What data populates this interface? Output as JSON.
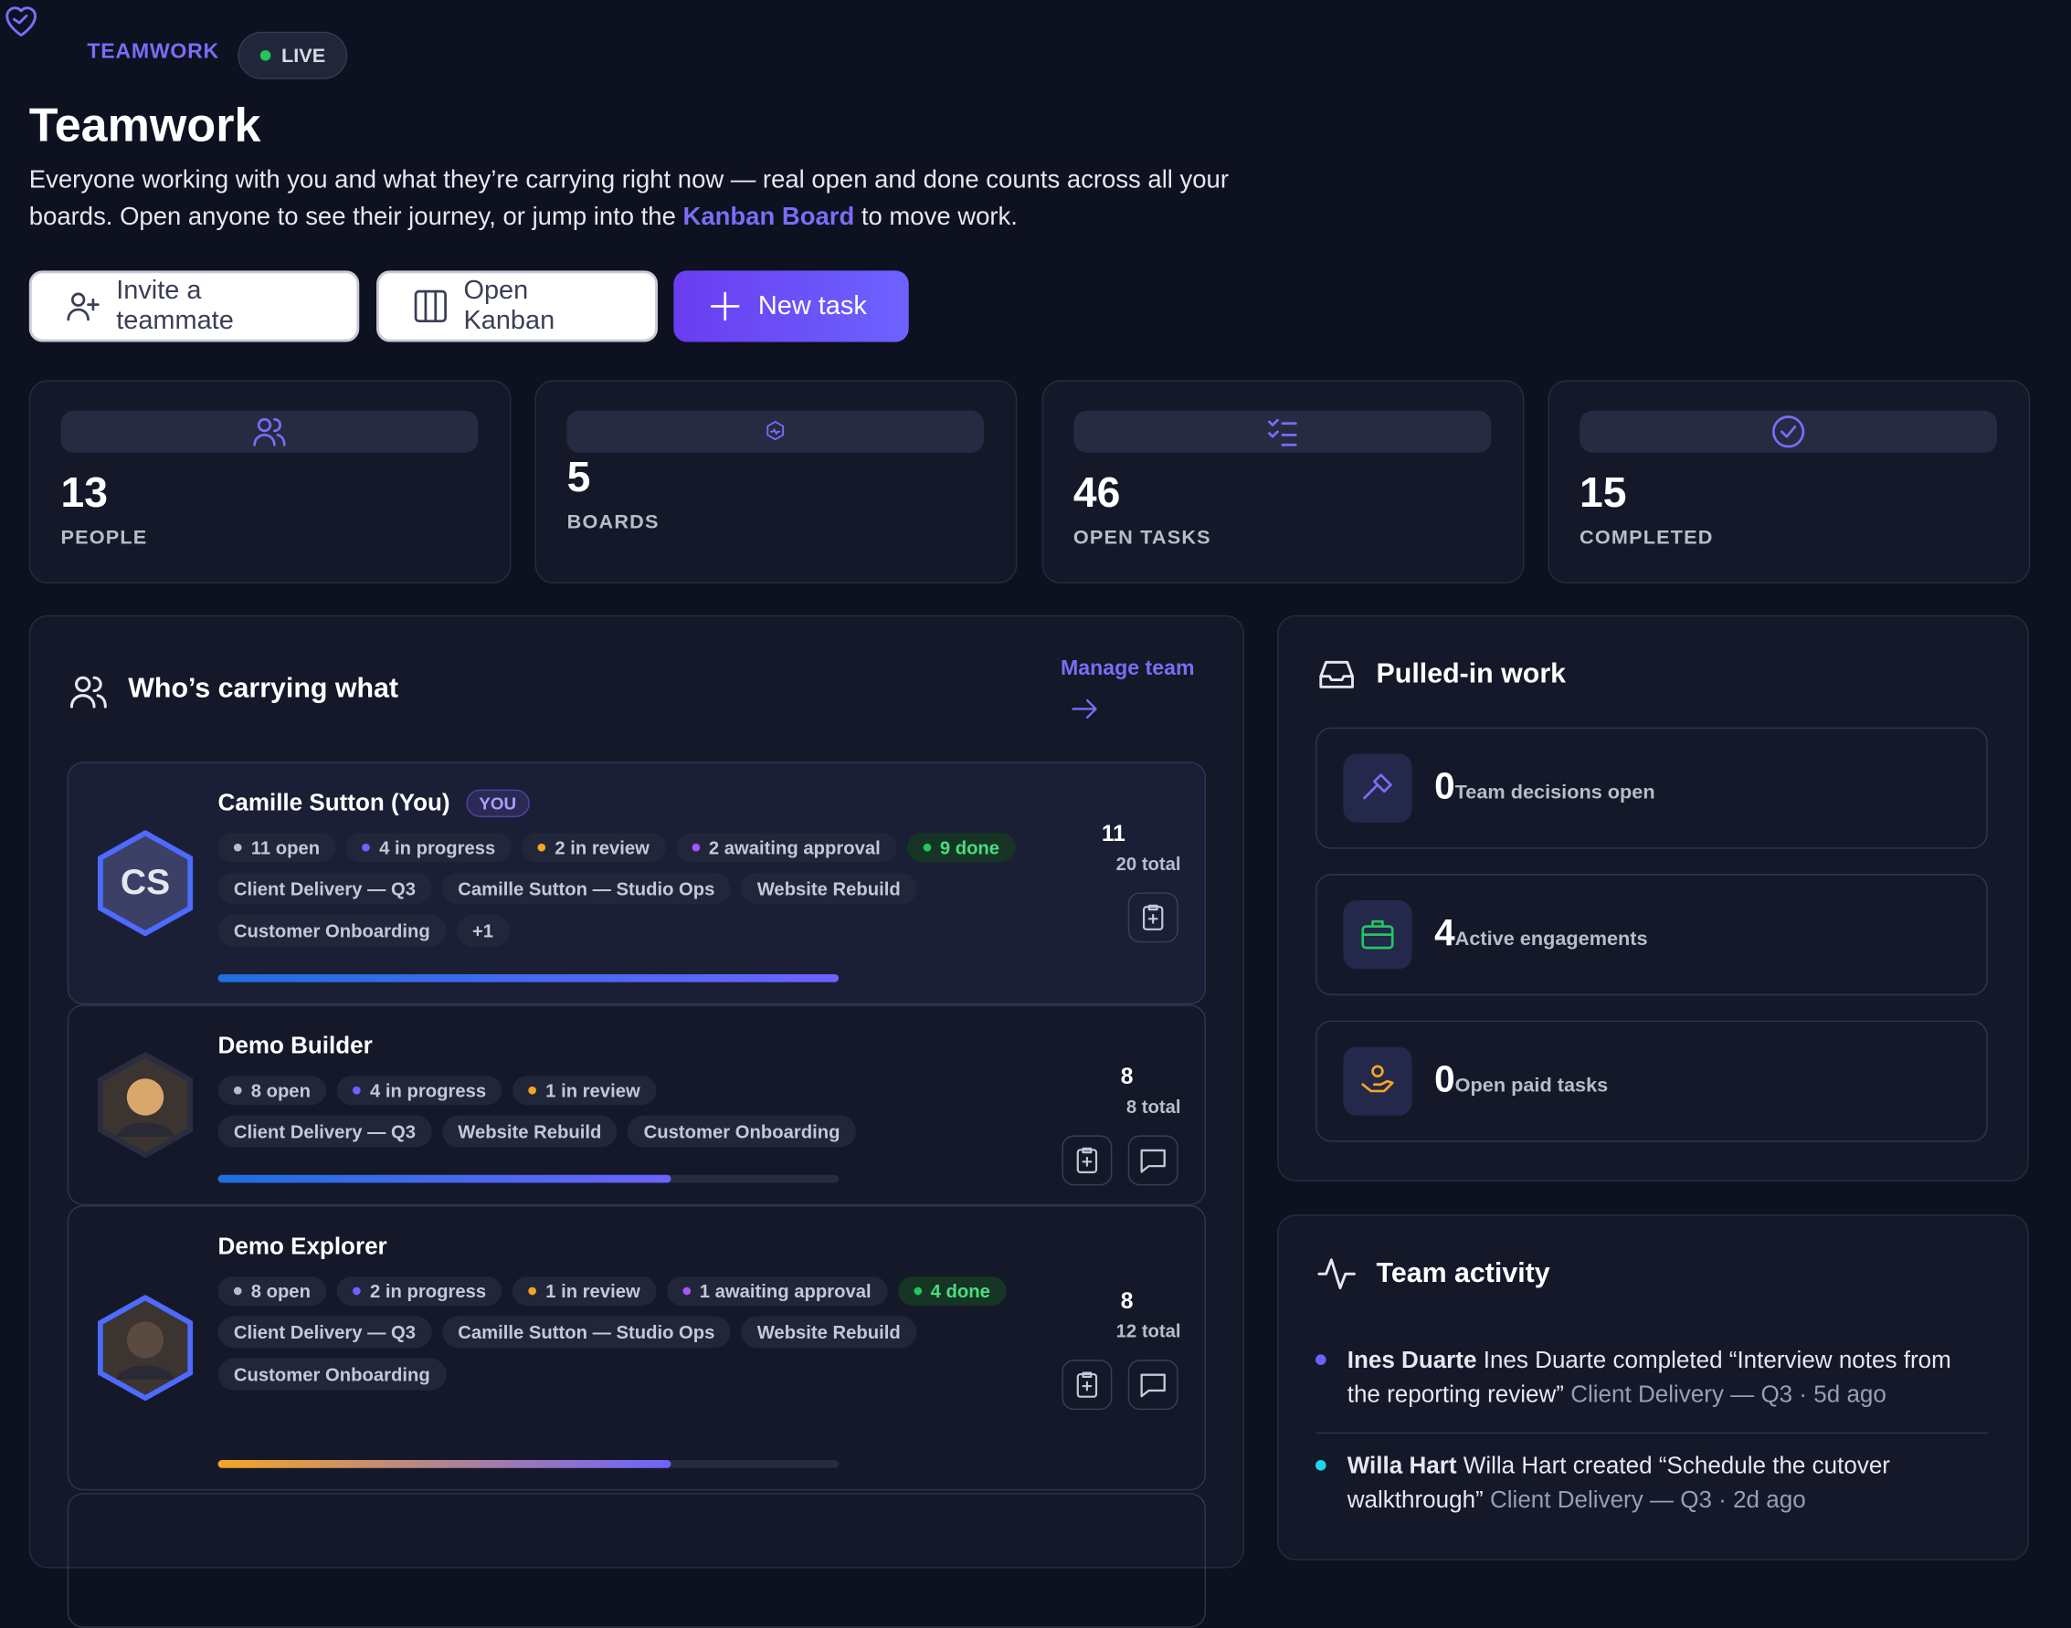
{
  "header": {
    "brand": "TEAMWORK",
    "status": "LIVE",
    "title": "Teamwork",
    "description_before": "Everyone working with you and what they’re carrying right now — real open and done counts across all your boards. Open anyone to see their journey, or jump into the ",
    "description_link": "Kanban Board",
    "description_after": " to move work."
  },
  "actions": [
    "Invite a teammate",
    "Open Kanban",
    "New task"
  ],
  "stats": [
    {
      "value": 13,
      "label": "PEOPLE"
    },
    {
      "value": 5,
      "label": "BOARDS"
    },
    {
      "value": 46,
      "label": "OPEN TASKS"
    },
    {
      "value": 15,
      "label": "COMPLETED"
    }
  ],
  "team_panel": {
    "title": "Who’s carrying what",
    "link": "Manage team",
    "members": [
      {
        "name": "Camille Sutton (You)",
        "badge": "YOU",
        "initials": "CS",
        "chips": [
          {
            "text": "11 open",
            "color": "#b8bccb"
          },
          {
            "text": "4 in progress",
            "color": "#6c63ff"
          },
          {
            "text": "2 in review",
            "color": "#f5a524"
          },
          {
            "text": "2 awaiting approval",
            "color": "#a855f7"
          },
          {
            "text": "9 done",
            "color": "#22c55e"
          }
        ],
        "boards": [
          "Client Delivery — Q3",
          "Camille Sutton — Studio Ops",
          "Website Rebuild",
          "Customer Onboarding",
          "+1"
        ],
        "total": 11,
        "total_label": "20 total"
      },
      {
        "name": "Demo Builder",
        "chips": [
          {
            "text": "8 open",
            "color": "#b8bccb"
          },
          {
            "text": "4 in progress",
            "color": "#6c63ff"
          },
          {
            "text": "1 in review",
            "color": "#f5a524"
          }
        ],
        "boards": [
          "Client Delivery — Q3",
          "Website Rebuild",
          "Customer Onboarding"
        ],
        "total": 8,
        "total_label": "8 total"
      },
      {
        "name": "Demo Explorer",
        "chips": [
          {
            "text": "8 open",
            "color": "#b8bccb"
          },
          {
            "text": "2 in progress",
            "color": "#6c63ff"
          },
          {
            "text": "1 in review",
            "color": "#f5a524"
          },
          {
            "text": "1 awaiting approval",
            "color": "#a855f7"
          },
          {
            "text": "4 done",
            "color": "#22c55e"
          }
        ],
        "boards": [
          "Client Delivery — Q3",
          "Camille Sutton — Studio Ops",
          "Website Rebuild",
          "Customer Onboarding"
        ],
        "total": 8,
        "total_label": "12 total"
      }
    ]
  },
  "pulled_in": {
    "title": "Pulled-in work",
    "items": [
      {
        "value": 0,
        "label": "Team decisions open",
        "color": "#7c6cf6"
      },
      {
        "value": 4,
        "label": "Active engagements",
        "color": "#22c55e"
      },
      {
        "value": 0,
        "label": "Open paid tasks",
        "color": "#f5a524"
      }
    ]
  },
  "activity": {
    "title": "Team activity",
    "items": [
      {
        "actor": "Ines Duarte",
        "text": "Ines Duarte completed “Interview notes from the reporting review”",
        "meta": "Client Delivery — Q3 · 5d ago",
        "color": "#6c63ff"
      },
      {
        "actor": "Willa Hart",
        "text": "Willa Hart created “Schedule the cutover walkthrough”",
        "meta": "Client Delivery — Q3 · 2d ago",
        "color": "#22d3ee"
      }
    ]
  }
}
